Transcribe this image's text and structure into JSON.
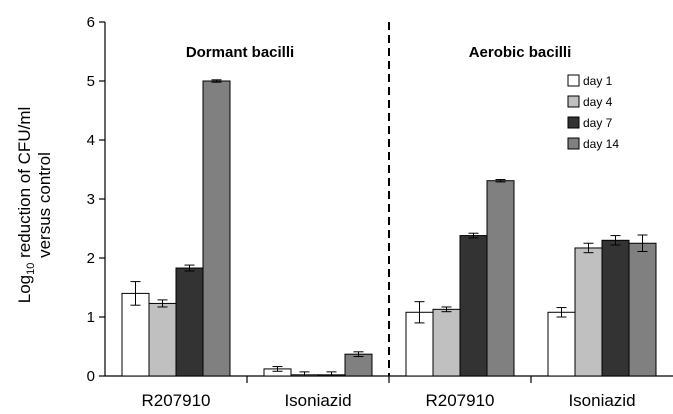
{
  "chart_data": {
    "type": "bar",
    "ylabel_prefix": "Log",
    "ylabel_sub": "10",
    "ylabel_rest": " reduction of CFU/ml",
    "ylabel_line2": "versus control",
    "ylim": [
      0,
      6
    ],
    "yticks": [
      0,
      1,
      2,
      3,
      4,
      5,
      6
    ],
    "categories": [
      "R207910",
      "Isoniazid",
      "R207910",
      "Isoniazid"
    ],
    "panels": [
      {
        "title": "Dormant bacilli"
      },
      {
        "title": "Aerobic bacilli"
      }
    ],
    "series": [
      {
        "name": "day 1",
        "color": "#ffffff",
        "values": [
          1.4,
          0.12,
          1.08,
          1.08
        ],
        "errors": [
          0.2,
          0.04,
          0.18,
          0.08
        ]
      },
      {
        "name": "day 4",
        "color": "#c0c0c0",
        "values": [
          1.23,
          0.02,
          1.13,
          2.17
        ],
        "errors": [
          0.06,
          0.05,
          0.04,
          0.08
        ]
      },
      {
        "name": "day 7",
        "color": "#333333",
        "values": [
          1.83,
          0.02,
          2.38,
          2.3
        ],
        "errors": [
          0.05,
          0.05,
          0.04,
          0.08
        ]
      },
      {
        "name": "day 14",
        "color": "#808080",
        "values": [
          5.0,
          0.37,
          3.31,
          2.25
        ],
        "errors": [
          0.02,
          0.04,
          0.02,
          0.14
        ]
      }
    ],
    "grid": false,
    "legend_position": "top-right",
    "divider": "dashed line between Dormant and Aerobic panels"
  }
}
